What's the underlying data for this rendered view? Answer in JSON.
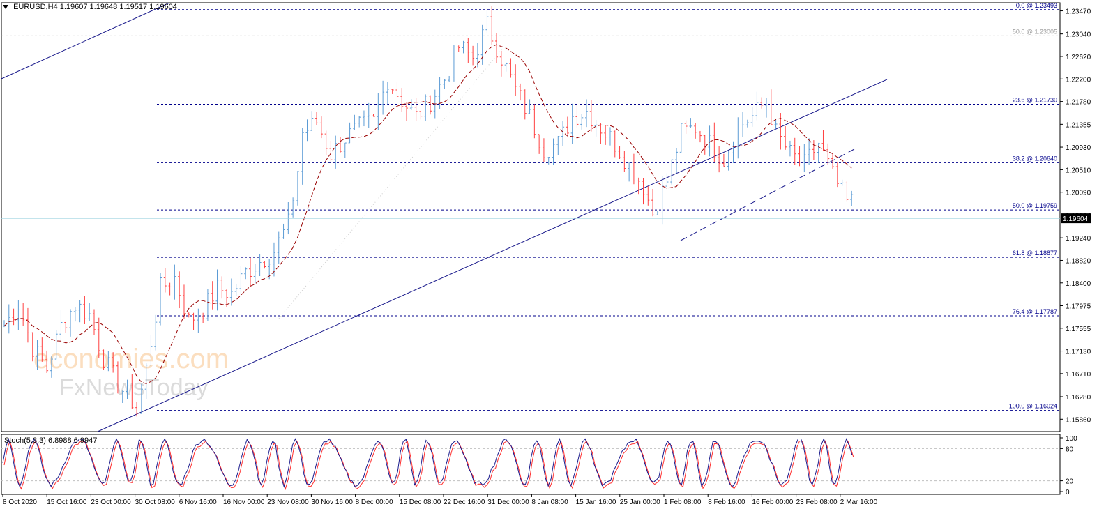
{
  "header": {
    "symbol": "EURUSD,H4",
    "ohlc": "1.19607 1.19648 1.19517 1.19604"
  },
  "stoch_label": "Stoch(5,3,3) 6.8988 6.9947",
  "watermark": {
    "line1": "economies.com",
    "line2": "FxNewsToday"
  },
  "colors": {
    "up": "#5b9bd5",
    "down": "#ff4040",
    "trend": "#1a1a8c",
    "ma": "#990000",
    "fib": "#00008b",
    "grid": "#c8c8c8"
  },
  "price_axis": {
    "ticks": [
      "1.23470",
      "1.23040",
      "1.22620",
      "1.22200",
      "1.21780",
      "1.21355",
      "1.20930",
      "1.20510",
      "1.20090",
      "1.19664",
      "1.19240",
      "1.18820",
      "1.18400",
      "1.17975",
      "1.17555",
      "1.17130",
      "1.16710",
      "1.16280",
      "1.15860"
    ],
    "current_price": "1.19604"
  },
  "fib_levels": [
    {
      "label": "0.0 @ 1.23493",
      "dashed_gray": false
    },
    {
      "label": "50.0 @ 1.23005",
      "dashed_gray": true
    },
    {
      "label": "23.6 @ 1.21730",
      "dashed_gray": false
    },
    {
      "label": "38.2 @ 1.20640",
      "dashed_gray": false
    },
    {
      "label": "50.0 @ 1.19759",
      "dashed_gray": false
    },
    {
      "label": "61.8 @ 1.18877",
      "dashed_gray": false
    },
    {
      "label": "76.4 @ 1.17787",
      "dashed_gray": false
    },
    {
      "label": "100.0 @ 1.16024",
      "dashed_gray": false
    }
  ],
  "stoch_axis": {
    "ticks": [
      "100",
      "80",
      "20",
      "0"
    ]
  },
  "time_axis": {
    "labels": [
      "8 Oct 2020",
      "15 Oct 16:00",
      "23 Oct 00:00",
      "30 Oct 08:00",
      "6 Nov 16:00",
      "16 Nov 00:00",
      "23 Nov 08:00",
      "30 Nov 16:00",
      "8 Dec 00:00",
      "15 Dec 08:00",
      "22 Dec 16:00",
      "31 Dec 00:00",
      "8 Jan 08:00",
      "15 Jan 16:00",
      "25 Jan 00:00",
      "1 Feb 08:00",
      "8 Feb 16:00",
      "16 Feb 00:00",
      "23 Feb 08:00",
      "2 Mar 16:00"
    ]
  },
  "chart_data": {
    "type": "candlestick",
    "symbol": "EURUSD",
    "timeframe": "H4",
    "ylim": [
      1.1563,
      1.2362
    ],
    "anchors": [
      [
        0,
        1.176
      ],
      [
        3,
        1.18
      ],
      [
        6,
        1.172
      ],
      [
        9,
        1.168
      ],
      [
        12,
        1.176
      ],
      [
        15,
        1.18
      ],
      [
        18,
        1.178
      ],
      [
        21,
        1.17
      ],
      [
        24,
        1.165
      ],
      [
        27,
        1.162
      ],
      [
        28,
        1.16
      ],
      [
        30,
        1.168
      ],
      [
        33,
        1.183
      ],
      [
        36,
        1.185
      ],
      [
        39,
        1.177
      ],
      [
        42,
        1.179
      ],
      [
        45,
        1.183
      ],
      [
        48,
        1.182
      ],
      [
        51,
        1.186
      ],
      [
        54,
        1.188
      ],
      [
        57,
        1.19
      ],
      [
        60,
        1.195
      ],
      [
        62,
        1.205
      ],
      [
        63,
        1.212
      ],
      [
        66,
        1.214
      ],
      [
        69,
        1.208
      ],
      [
        72,
        1.211
      ],
      [
        75,
        1.213
      ],
      [
        78,
        1.214
      ],
      [
        81,
        1.222
      ],
      [
        84,
        1.218
      ],
      [
        87,
        1.215
      ],
      [
        90,
        1.218
      ],
      [
        93,
        1.222
      ],
      [
        96,
        1.228
      ],
      [
        99,
        1.226
      ],
      [
        101,
        1.23
      ],
      [
        102,
        1.232
      ],
      [
        105,
        1.226
      ],
      [
        108,
        1.22
      ],
      [
        111,
        1.215
      ],
      [
        114,
        1.209
      ],
      [
        117,
        1.21
      ],
      [
        120,
        1.215
      ],
      [
        123,
        1.216
      ],
      [
        126,
        1.213
      ],
      [
        129,
        1.21
      ],
      [
        132,
        1.206
      ],
      [
        135,
        1.202
      ],
      [
        137,
        1.197
      ],
      [
        140,
        1.203
      ],
      [
        143,
        1.212
      ],
      [
        146,
        1.213
      ],
      [
        149,
        1.21
      ],
      [
        152,
        1.207
      ],
      [
        155,
        1.213
      ],
      [
        158,
        1.215
      ],
      [
        161,
        1.218
      ],
      [
        163,
        1.212
      ],
      [
        166,
        1.208
      ],
      [
        169,
        1.206
      ],
      [
        172,
        1.21
      ],
      [
        175,
        1.204
      ],
      [
        178,
        1.199
      ]
    ]
  }
}
